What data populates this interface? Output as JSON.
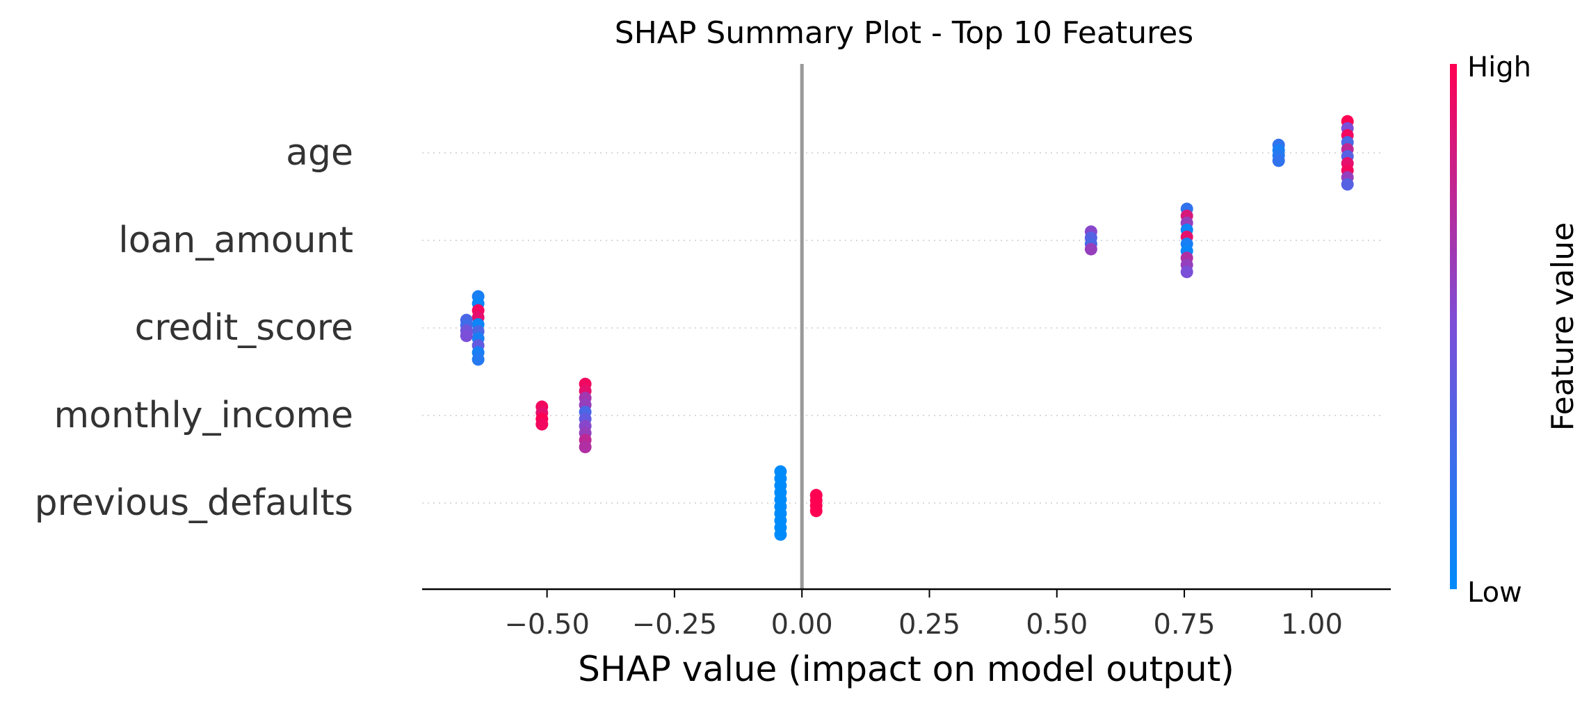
{
  "chart_data": {
    "type": "scatter",
    "title": "SHAP Summary Plot - Top 10 Features",
    "xlabel": "SHAP value (impact on model output)",
    "xlim": [
      -0.745,
      1.155
    ],
    "xticks": [
      "−0.50",
      "−0.25",
      "0.00",
      "0.25",
      "0.50",
      "0.75",
      "1.00"
    ],
    "xtick_values": [
      -0.5,
      -0.25,
      0.0,
      0.25,
      0.5,
      0.75,
      1.0
    ],
    "grid": "horizontal dotted per feature row",
    "zero_line": 0.0,
    "colorbar": {
      "label": "Feature value",
      "high_label": "High",
      "low_label": "Low",
      "high_color": "#ff0052",
      "mid_color": "#7b4fd8",
      "low_color": "#008bfb"
    },
    "features": [
      {
        "name": "age",
        "points": [
          {
            "x": 0.935,
            "dy": -0.09,
            "v": 0.2
          },
          {
            "x": 0.935,
            "dy": -0.03,
            "v": 0.1
          },
          {
            "x": 0.935,
            "dy": 0.03,
            "v": 0.15
          },
          {
            "x": 0.935,
            "dy": 0.09,
            "v": 0.2
          },
          {
            "x": 1.07,
            "dy": -0.36,
            "v": 1.0
          },
          {
            "x": 1.07,
            "dy": -0.28,
            "v": 0.5
          },
          {
            "x": 1.07,
            "dy": -0.2,
            "v": 0.95
          },
          {
            "x": 1.07,
            "dy": -0.12,
            "v": 0.3
          },
          {
            "x": 1.07,
            "dy": -0.04,
            "v": 0.75
          },
          {
            "x": 1.07,
            "dy": 0.04,
            "v": 0.35
          },
          {
            "x": 1.07,
            "dy": 0.12,
            "v": 0.9
          },
          {
            "x": 1.07,
            "dy": 0.2,
            "v": 0.95
          },
          {
            "x": 1.07,
            "dy": 0.28,
            "v": 0.6
          },
          {
            "x": 1.07,
            "dy": 0.36,
            "v": 0.35
          }
        ]
      },
      {
        "name": "loan_amount",
        "points": [
          {
            "x": 0.567,
            "dy": -0.1,
            "v": 0.55
          },
          {
            "x": 0.567,
            "dy": -0.03,
            "v": 0.35
          },
          {
            "x": 0.567,
            "dy": 0.04,
            "v": 0.3
          },
          {
            "x": 0.567,
            "dy": 0.1,
            "v": 0.6
          },
          {
            "x": 0.755,
            "dy": -0.36,
            "v": 0.2
          },
          {
            "x": 0.755,
            "dy": -0.28,
            "v": 0.85
          },
          {
            "x": 0.755,
            "dy": -0.2,
            "v": 0.6
          },
          {
            "x": 0.755,
            "dy": -0.12,
            "v": 0.05
          },
          {
            "x": 0.755,
            "dy": -0.04,
            "v": 0.9
          },
          {
            "x": 0.755,
            "dy": 0.04,
            "v": 0.1
          },
          {
            "x": 0.755,
            "dy": 0.12,
            "v": 0.05
          },
          {
            "x": 0.755,
            "dy": 0.2,
            "v": 0.7
          },
          {
            "x": 0.755,
            "dy": 0.28,
            "v": 0.6
          },
          {
            "x": 0.755,
            "dy": 0.36,
            "v": 0.5
          }
        ]
      },
      {
        "name": "credit_score",
        "points": [
          {
            "x": -0.635,
            "dy": -0.36,
            "v": 0.1
          },
          {
            "x": -0.635,
            "dy": -0.28,
            "v": 0.05
          },
          {
            "x": -0.635,
            "dy": -0.2,
            "v": 0.95
          },
          {
            "x": -0.635,
            "dy": -0.12,
            "v": 0.9
          },
          {
            "x": -0.635,
            "dy": -0.04,
            "v": 0.05
          },
          {
            "x": -0.635,
            "dy": 0.04,
            "v": 0.3
          },
          {
            "x": -0.635,
            "dy": 0.12,
            "v": 0.1
          },
          {
            "x": -0.635,
            "dy": 0.2,
            "v": 0.4
          },
          {
            "x": -0.635,
            "dy": 0.28,
            "v": 0.1
          },
          {
            "x": -0.635,
            "dy": 0.36,
            "v": 0.15
          },
          {
            "x": -0.658,
            "dy": -0.09,
            "v": 0.3
          },
          {
            "x": -0.658,
            "dy": -0.03,
            "v": 0.25
          },
          {
            "x": -0.658,
            "dy": 0.03,
            "v": 0.45
          },
          {
            "x": -0.658,
            "dy": 0.09,
            "v": 0.5
          }
        ]
      },
      {
        "name": "monthly_income",
        "points": [
          {
            "x": -0.51,
            "dy": -0.1,
            "v": 0.95
          },
          {
            "x": -0.51,
            "dy": -0.03,
            "v": 0.9
          },
          {
            "x": -0.51,
            "dy": 0.04,
            "v": 1.0
          },
          {
            "x": -0.51,
            "dy": 0.1,
            "v": 0.95
          },
          {
            "x": -0.425,
            "dy": -0.36,
            "v": 0.95
          },
          {
            "x": -0.425,
            "dy": -0.28,
            "v": 0.9
          },
          {
            "x": -0.425,
            "dy": -0.2,
            "v": 0.65
          },
          {
            "x": -0.425,
            "dy": -0.12,
            "v": 0.6
          },
          {
            "x": -0.425,
            "dy": -0.04,
            "v": 0.3
          },
          {
            "x": -0.425,
            "dy": 0.04,
            "v": 0.4
          },
          {
            "x": -0.425,
            "dy": 0.12,
            "v": 0.55
          },
          {
            "x": -0.425,
            "dy": 0.2,
            "v": 0.6
          },
          {
            "x": -0.425,
            "dy": 0.28,
            "v": 0.75
          },
          {
            "x": -0.425,
            "dy": 0.36,
            "v": 0.7
          }
        ]
      },
      {
        "name": "previous_defaults",
        "points": [
          {
            "x": -0.042,
            "dy": -0.36,
            "v": 0.0
          },
          {
            "x": -0.042,
            "dy": -0.28,
            "v": 0.0
          },
          {
            "x": -0.042,
            "dy": -0.2,
            "v": 0.0
          },
          {
            "x": -0.042,
            "dy": -0.12,
            "v": 0.0
          },
          {
            "x": -0.042,
            "dy": -0.04,
            "v": 0.0
          },
          {
            "x": -0.042,
            "dy": 0.04,
            "v": 0.0
          },
          {
            "x": -0.042,
            "dy": 0.12,
            "v": 0.0
          },
          {
            "x": -0.042,
            "dy": 0.2,
            "v": 0.0
          },
          {
            "x": -0.042,
            "dy": 0.28,
            "v": 0.0
          },
          {
            "x": -0.042,
            "dy": 0.36,
            "v": 0.0
          },
          {
            "x": 0.028,
            "dy": -0.09,
            "v": 1.0
          },
          {
            "x": 0.028,
            "dy": -0.03,
            "v": 1.0
          },
          {
            "x": 0.028,
            "dy": 0.03,
            "v": 1.0
          },
          {
            "x": 0.028,
            "dy": 0.09,
            "v": 1.0
          }
        ]
      }
    ]
  }
}
